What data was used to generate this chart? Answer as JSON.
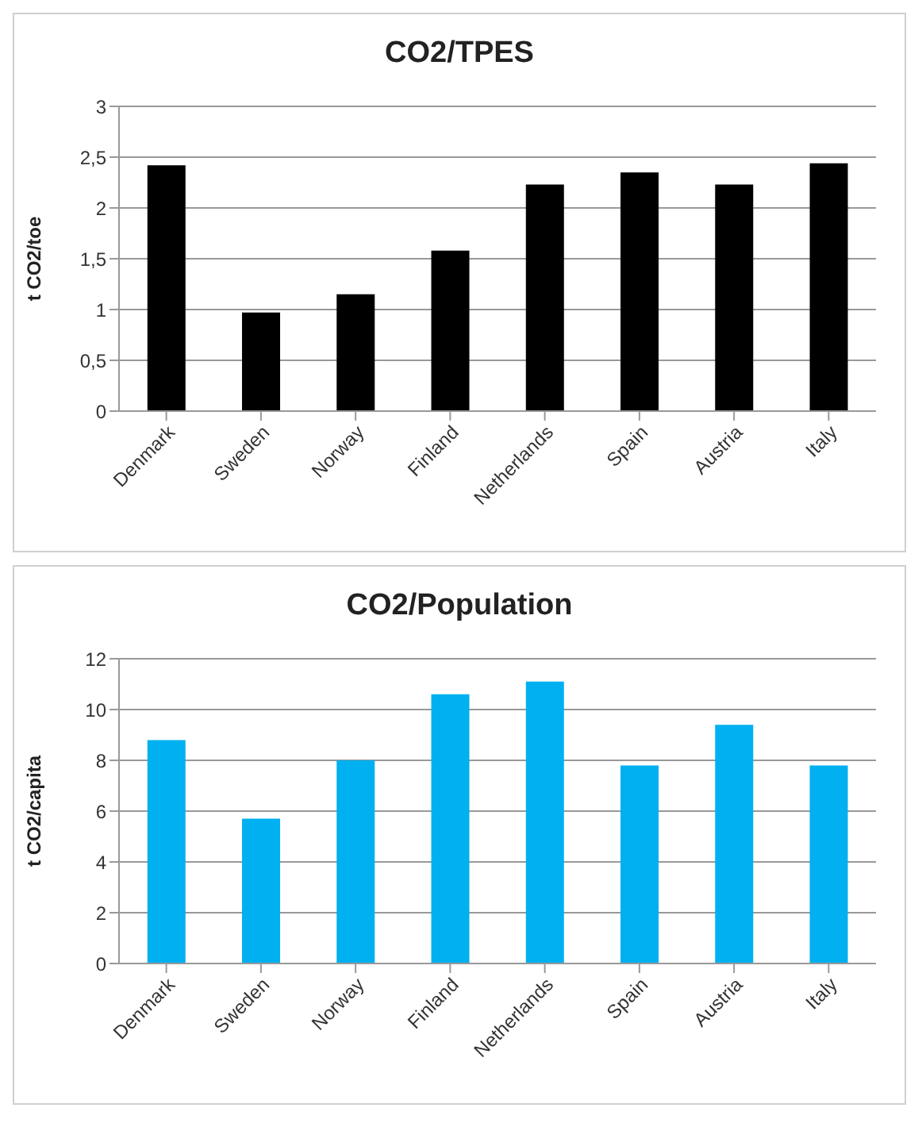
{
  "chart_data": [
    {
      "type": "bar",
      "title": "CO2/TPES",
      "ylabel": "t CO2/toe",
      "categories": [
        "Denmark",
        "Sweden",
        "Norway",
        "Finland",
        "Netherlands",
        "Spain",
        "Austria",
        "Italy"
      ],
      "series": [
        {
          "color": "#000000",
          "values": [
            2.42,
            0.97,
            1.15,
            1.58,
            2.23,
            2.35,
            2.23,
            2.44
          ]
        }
      ],
      "ylim": [
        0,
        3
      ],
      "yticks": [
        0,
        {
          "value": 0.5,
          "label": "0,5"
        },
        1,
        {
          "value": 1.5,
          "label": "1,5"
        },
        2,
        {
          "value": 2.5,
          "label": "2,5"
        },
        3
      ],
      "grid": "y",
      "legend": false
    },
    {
      "type": "bar",
      "title": "CO2/Population",
      "ylabel": "t CO2/capita",
      "categories": [
        "Denmark",
        "Sweden",
        "Norway",
        "Finland",
        "Netherlands",
        "Spain",
        "Austria",
        "Italy"
      ],
      "series": [
        {
          "color": "#00b0f0",
          "values": [
            8.8,
            5.7,
            8.0,
            10.6,
            11.1,
            7.8,
            9.4,
            7.8
          ]
        }
      ],
      "ylim": [
        0,
        12
      ],
      "yticks": [
        0,
        2,
        4,
        6,
        8,
        10,
        12
      ],
      "grid": "y",
      "legend": false
    }
  ]
}
